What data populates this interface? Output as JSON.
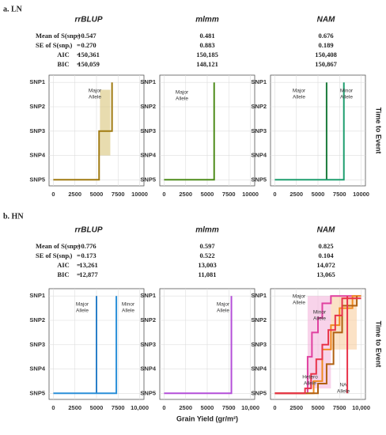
{
  "sections": [
    {
      "title": "a. LN",
      "side_label": "Time to Event",
      "sign": "=",
      "stat_rows": [
        {
          "label": "Mean of  S(snpᵢ)",
          "values": [
            "0.547",
            "0.481",
            "0.676"
          ]
        },
        {
          "label": "SE of  S(snpᵢ)",
          "values": [
            "0.270",
            "0.883",
            "0.189"
          ]
        },
        {
          "label": "AIC",
          "values": [
            "150,361",
            "150,185",
            "150,408"
          ]
        },
        {
          "label": "BIC",
          "values": [
            "150,059",
            "148,121",
            "150,867"
          ]
        }
      ]
    },
    {
      "title": "b. HN",
      "side_label": "Time to Event",
      "sign": "=",
      "stat_rows": [
        {
          "label": "Mean of  S(snpᵢ)",
          "values": [
            "0.776",
            "0.597",
            "0.825"
          ]
        },
        {
          "label": "SE of  S(snpᵢ)",
          "values": [
            "0.173",
            "0.522",
            "0.104"
          ]
        },
        {
          "label": "AIC",
          "values": [
            "13,261",
            "13,003",
            "14,072"
          ]
        },
        {
          "label": "BIC",
          "values": [
            "12,877",
            "11,081",
            "13,065"
          ]
        }
      ]
    }
  ],
  "x_label": "Grain Yield (gr/m²)",
  "chart_data": [
    {
      "type": "step",
      "title": "rrBLUP",
      "xlim": [
        -500,
        10500
      ],
      "ylim": [
        5.25,
        0.7
      ],
      "xticks": [
        0,
        2500,
        5000,
        7500,
        10000
      ],
      "yticks": [
        {
          "value": 1,
          "label": "SNP1"
        },
        {
          "value": 2,
          "label": "SNP2"
        },
        {
          "value": 3,
          "label": "SNP3"
        },
        {
          "value": 4,
          "label": "SNP4"
        },
        {
          "value": 5,
          "label": "SNP5"
        }
      ],
      "bands": [
        {
          "color": "#d8c57a",
          "x": [
            5400,
            6600
          ],
          "values": [
            1.3,
            4
          ]
        }
      ],
      "series": [
        {
          "color": "#a07a10",
          "x": [
            0,
            5300,
            5300,
            6800,
            6800
          ],
          "values": [
            5,
            5,
            3,
            3,
            1
          ]
        }
      ],
      "annotations": [
        [
          "Major",
          "Allele"
        ]
      ]
    },
    {
      "type": "step",
      "title": "mlmm",
      "xlim": [
        -500,
        10500
      ],
      "ylim": [
        5.25,
        0.7
      ],
      "xticks": [
        0,
        2500,
        5000,
        7500,
        10000
      ],
      "yticks": [
        {
          "value": 1,
          "label": "SNP1"
        },
        {
          "value": 2,
          "label": "SNP2"
        },
        {
          "value": 3,
          "label": "SNP3"
        },
        {
          "value": 4,
          "label": "SNP4"
        },
        {
          "value": 5,
          "label": "SNP5"
        }
      ],
      "series": [
        {
          "color": "#4d8c1a",
          "x": [
            0,
            5800,
            5800
          ],
          "values": [
            5,
            5,
            1
          ]
        }
      ],
      "annotations": [
        [
          "Major",
          "Allele"
        ]
      ]
    },
    {
      "type": "step",
      "title": "NAM",
      "xlim": [
        -500,
        10500
      ],
      "ylim": [
        5.25,
        0.7
      ],
      "xticks": [
        0,
        2500,
        5000,
        7500,
        10000
      ],
      "yticks": [
        {
          "value": 1,
          "label": "SNP1"
        },
        {
          "value": 2,
          "label": "SNP2"
        },
        {
          "value": 3,
          "label": "SNP3"
        },
        {
          "value": 4,
          "label": "SNP4"
        },
        {
          "value": 5,
          "label": "SNP5"
        }
      ],
      "series": [
        {
          "color": "#1a7a3a",
          "x": [
            6000,
            6000
          ],
          "values": [
            5,
            1
          ]
        },
        {
          "color": "#1e9e6e",
          "x": [
            0,
            8000,
            8000
          ],
          "values": [
            5,
            5,
            1
          ]
        }
      ],
      "annotations": [
        [
          "Major",
          "Allele"
        ],
        [
          "Minor",
          "Allele"
        ]
      ]
    },
    {
      "type": "step",
      "title": "rrBLUP",
      "xlim": [
        -500,
        10500
      ],
      "ylim": [
        5.25,
        0.7
      ],
      "xticks": [
        0,
        2500,
        5000,
        7500,
        {
          "value": 10000,
          "label": "10,000"
        }
      ],
      "yticks": [
        {
          "value": 1,
          "label": "SNP1"
        },
        {
          "value": 2,
          "label": "SNP2"
        },
        {
          "value": 3,
          "label": "SNP3"
        },
        {
          "value": 4,
          "label": "SNP4"
        },
        {
          "value": 5,
          "label": "SNP5"
        }
      ],
      "series": [
        {
          "color": "#2a7fc8",
          "x": [
            5000,
            5000
          ],
          "values": [
            5,
            1
          ]
        },
        {
          "color": "#2a8fd8",
          "x": [
            0,
            7300,
            7300
          ],
          "values": [
            5,
            5,
            1
          ]
        }
      ],
      "annotations": [
        [
          "Major",
          "Allele"
        ],
        [
          "Minor",
          "Allele"
        ]
      ]
    },
    {
      "type": "step",
      "title": "mlmm",
      "xlim": [
        -500,
        10500
      ],
      "ylim": [
        5.25,
        0.7
      ],
      "xticks": [
        0,
        2500,
        5000,
        7500,
        {
          "value": 10000,
          "label": "10,000"
        }
      ],
      "yticks": [
        {
          "value": 1,
          "label": "SNP1"
        },
        {
          "value": 2,
          "label": "SNP2"
        },
        {
          "value": 3,
          "label": "SNP3"
        },
        {
          "value": 4,
          "label": "SNP4"
        },
        {
          "value": 5,
          "label": "SNP5"
        }
      ],
      "series": [
        {
          "color": "#b44fd8",
          "x": [
            0,
            7800,
            7800
          ],
          "values": [
            5,
            5,
            1
          ]
        }
      ],
      "annotations": [
        [
          "Major",
          "Allele"
        ]
      ]
    },
    {
      "type": "step",
      "title": "NAM",
      "xlim": [
        -500,
        10500
      ],
      "ylim": [
        5.25,
        0.7
      ],
      "xticks": [
        0,
        2500,
        5000,
        7500,
        {
          "value": 10000,
          "label": "10,000"
        }
      ],
      "yticks": [
        {
          "value": 1,
          "label": "SNP1"
        },
        {
          "value": 2,
          "label": "SNP2"
        },
        {
          "value": 3,
          "label": "SNP3"
        },
        {
          "value": 4,
          "label": "SNP4"
        },
        {
          "value": 5,
          "label": "SNP5"
        }
      ],
      "bands": [
        {
          "color": "#f4b6dc",
          "x": [
            3800,
            6500
          ],
          "values": [
            1,
            4.8
          ]
        },
        {
          "color": "#f8cfa0",
          "x": [
            6500,
            9500
          ],
          "values": [
            1,
            3.2
          ]
        }
      ],
      "series": [
        {
          "color": "#e040a0",
          "x": [
            0,
            3800,
            3800,
            4300,
            4300,
            5000,
            5000,
            5500,
            5500,
            6500,
            6500,
            10000
          ],
          "values": [
            5,
            5,
            3.5,
            3.5,
            2.5,
            2.5,
            1.9,
            1.9,
            1.3,
            1.3,
            1,
            1
          ]
        },
        {
          "color": "#f08a20",
          "x": [
            0,
            4500,
            4500,
            5500,
            5500,
            6500,
            6500,
            7500,
            7500,
            9000,
            9000,
            10000
          ],
          "values": [
            5,
            5,
            4.5,
            4.5,
            3.2,
            3.2,
            2.2,
            2.2,
            1.5,
            1.5,
            1,
            1
          ]
        },
        {
          "color": "#b06010",
          "x": [
            0,
            5000,
            5000,
            6000,
            6000,
            6800,
            6800,
            7800,
            7800,
            9500,
            9500
          ],
          "values": [
            5,
            5,
            4.6,
            4.6,
            3.8,
            3.8,
            2.5,
            2.5,
            1.4,
            1.4,
            1
          ]
        },
        {
          "color": "#e8334a",
          "x": [
            0,
            3500,
            3500,
            4200,
            4200,
            4800,
            4800,
            5500,
            5500,
            6200,
            6200,
            7000,
            7000,
            7800,
            7800,
            10000
          ],
          "values": [
            5,
            5,
            4.8,
            4.8,
            4.2,
            4.2,
            3.6,
            3.6,
            3,
            3,
            2.4,
            2.4,
            1.8,
            1.8,
            1.1,
            1.1
          ]
        },
        {
          "color": "#e8334a",
          "x": [
            8400,
            8400
          ],
          "values": [
            5,
            1
          ]
        }
      ],
      "annotations": [
        [
          "Major",
          "Allele"
        ],
        [
          "Minor",
          "Allele"
        ],
        [
          "Hetero",
          "Allele"
        ],
        [
          "NA",
          "Allele"
        ]
      ]
    }
  ]
}
